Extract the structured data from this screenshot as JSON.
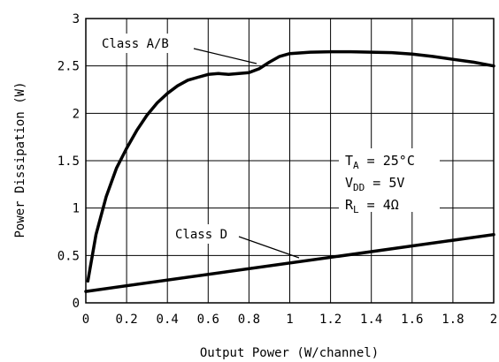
{
  "chart_data": {
    "type": "line",
    "xlabel": "Output Power (W/channel)",
    "ylabel": "Power Dissipation (W)",
    "xlim": [
      0,
      2
    ],
    "ylim": [
      0,
      3
    ],
    "x_ticks": [
      "0",
      "0.2",
      "0.4",
      "0.6",
      "0.8",
      "1",
      "1.2",
      "1.4",
      "1.6",
      "1.8",
      "2"
    ],
    "y_ticks": [
      "0",
      "0.5",
      "1",
      "1.5",
      "2",
      "2.5",
      "3"
    ],
    "grid": true,
    "series": [
      {
        "name": "Class A/B",
        "x": [
          0.01,
          0.05,
          0.1,
          0.15,
          0.2,
          0.25,
          0.3,
          0.35,
          0.4,
          0.45,
          0.5,
          0.55,
          0.6,
          0.65,
          0.7,
          0.75,
          0.8,
          0.85,
          0.9,
          0.95,
          1.0,
          1.1,
          1.2,
          1.3,
          1.4,
          1.5,
          1.6,
          1.7,
          1.8,
          1.9,
          2.0
        ],
        "y": [
          0.23,
          0.72,
          1.12,
          1.42,
          1.63,
          1.82,
          1.98,
          2.11,
          2.21,
          2.29,
          2.35,
          2.38,
          2.41,
          2.42,
          2.41,
          2.42,
          2.43,
          2.47,
          2.54,
          2.6,
          2.63,
          2.645,
          2.65,
          2.65,
          2.645,
          2.64,
          2.625,
          2.6,
          2.57,
          2.54,
          2.5
        ]
      },
      {
        "name": "Class D",
        "x": [
          0,
          2
        ],
        "y": [
          0.12,
          0.72
        ]
      }
    ],
    "annotations": {
      "ta": {
        "main": "T",
        "sub": "A",
        "rest": " = 25°C"
      },
      "vdd": {
        "main": "V",
        "sub": "DD",
        "rest": " = 5V"
      },
      "rl": {
        "main": "R",
        "sub": "L",
        "rest": " = 4Ω"
      }
    }
  }
}
